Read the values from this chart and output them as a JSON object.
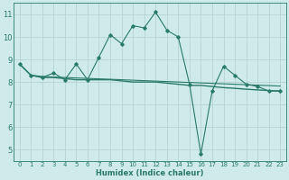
{
  "xlabel": "Humidex (Indice chaleur)",
  "ylabel": "",
  "bg_color": "#ceeaea",
  "grid_color": "#b0d0d0",
  "line_color": "#2a7a6a",
  "xlim": [
    -0.5,
    23.5
  ],
  "ylim": [
    4.5,
    11.5
  ],
  "xticks": [
    0,
    1,
    2,
    3,
    4,
    5,
    6,
    7,
    8,
    9,
    10,
    11,
    12,
    13,
    14,
    15,
    16,
    17,
    18,
    19,
    20,
    21,
    22,
    23
  ],
  "yticks": [
    5,
    6,
    7,
    8,
    9,
    10,
    11
  ],
  "series1_x": [
    0,
    1,
    2,
    3,
    4,
    5,
    6,
    7,
    8,
    9,
    10,
    11,
    12,
    13,
    14,
    15,
    16,
    17,
    18,
    19,
    20,
    21,
    22,
    23
  ],
  "series1_y": [
    8.8,
    8.3,
    8.2,
    8.4,
    8.1,
    8.8,
    8.1,
    9.1,
    10.1,
    9.7,
    10.5,
    10.4,
    11.1,
    10.3,
    10.0,
    7.9,
    4.8,
    7.6,
    8.7,
    8.3,
    7.9,
    7.8,
    7.6,
    7.6
  ],
  "series2_x": [
    0,
    1,
    2,
    3,
    4,
    5,
    6,
    7,
    8,
    9,
    10,
    11,
    12,
    13,
    14,
    15,
    16,
    17,
    18,
    19,
    20,
    21,
    22,
    23
  ],
  "series2_y": [
    8.8,
    8.3,
    8.2,
    8.2,
    8.15,
    8.1,
    8.1,
    8.1,
    8.1,
    8.05,
    8.0,
    8.0,
    8.0,
    7.95,
    7.9,
    7.85,
    7.85,
    7.8,
    7.75,
    7.72,
    7.68,
    7.65,
    7.62,
    7.6
  ],
  "series3_x": [
    0,
    1,
    2,
    3,
    4,
    5,
    6,
    7,
    8,
    9,
    10,
    11,
    12,
    13,
    14,
    15,
    16,
    17,
    18,
    19,
    20,
    21,
    22,
    23
  ],
  "series3_y": [
    8.8,
    8.3,
    8.25,
    8.22,
    8.2,
    8.18,
    8.16,
    8.14,
    8.12,
    8.1,
    8.08,
    8.06,
    8.04,
    8.02,
    8.0,
    7.98,
    7.96,
    7.94,
    7.92,
    7.9,
    7.88,
    7.86,
    7.84,
    7.82
  ]
}
